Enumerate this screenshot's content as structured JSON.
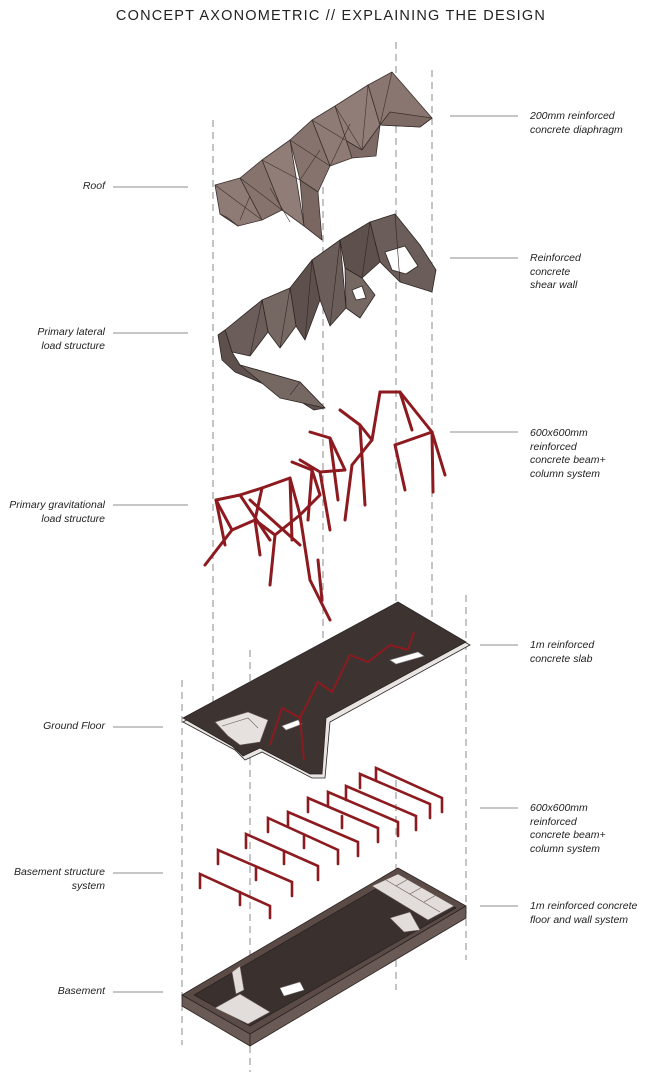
{
  "title": "CONCEPT AXONOMETRIC  //  EXPLAINING THE DESIGN",
  "labels": {
    "roof": "Roof",
    "lateral": "Primary lateral\nload structure",
    "gravitational": "Primary gravitational\nload structure",
    "ground_floor": "Ground Floor",
    "basement_structure": "Basement structure\nsystem",
    "basement": "Basement",
    "diaphragm": "200mm reinforced\nconcrete diaphragm",
    "shear_wall": "Reinforced\nconcrete\nshear wall",
    "beam_column_upper": "600x600mm\nreinforced\nconcrete beam+\ncolumn system",
    "slab": "1m reinforced\nconcrete slab",
    "beam_column_lower": "600x600mm\nreinforced\nconcrete beam+\ncolumn system",
    "floor_wall": "1m reinforced concrete\nfloor and wall system"
  },
  "colors": {
    "roof_fill": "#8a7670",
    "roof_stroke": "#3b302d",
    "wall_fill": "#6b5d59",
    "structure_red": "#8c1a1f",
    "slab_fill": "#3d3432",
    "slab_edge": "#e9e5e3",
    "basement_fill": "#3a302e",
    "basement_wall": "#6a5a56",
    "guide_line": "#888888",
    "text": "#222222"
  }
}
